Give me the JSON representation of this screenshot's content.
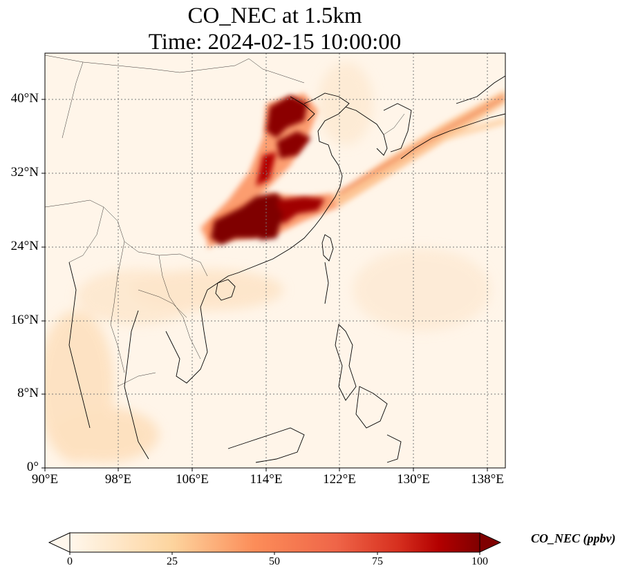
{
  "title": {
    "line1": "CO_NEC at 1.5km",
    "line2": "Time: 2024-02-15 10:00:00"
  },
  "map": {
    "projection": "PlateCarree",
    "lon_range": [
      90,
      140
    ],
    "lat_range": [
      0,
      45
    ],
    "gridlines": "dotted",
    "coastlines": true,
    "borders": true,
    "lat_ticks": [
      {
        "value": 0,
        "label": "0°"
      },
      {
        "value": 8,
        "label": "8°N"
      },
      {
        "value": 16,
        "label": "16°N"
      },
      {
        "value": 24,
        "label": "24°N"
      },
      {
        "value": 32,
        "label": "32°N"
      },
      {
        "value": 40,
        "label": "40°N"
      }
    ],
    "lon_ticks": [
      {
        "value": 90,
        "label": "90°E"
      },
      {
        "value": 98,
        "label": "98°E"
      },
      {
        "value": 106,
        "label": "106°E"
      },
      {
        "value": 114,
        "label": "114°E"
      },
      {
        "value": 122,
        "label": "122°E"
      },
      {
        "value": 130,
        "label": "130°E"
      },
      {
        "value": 138,
        "label": "138°E"
      }
    ]
  },
  "colorbar": {
    "label": "CO_NEC (ppbv)",
    "colormap": "OrRd",
    "range": [
      0,
      100
    ],
    "extend": "both",
    "ticks": [
      {
        "value": 0,
        "label": "0"
      },
      {
        "value": 25,
        "label": "25"
      },
      {
        "value": 50,
        "label": "50"
      },
      {
        "value": 75,
        "label": "75"
      },
      {
        "value": 100,
        "label": "100"
      }
    ]
  },
  "colors": {
    "low": "#fff7ec",
    "mid": "#fdbb84",
    "high": "#7f0000"
  }
}
